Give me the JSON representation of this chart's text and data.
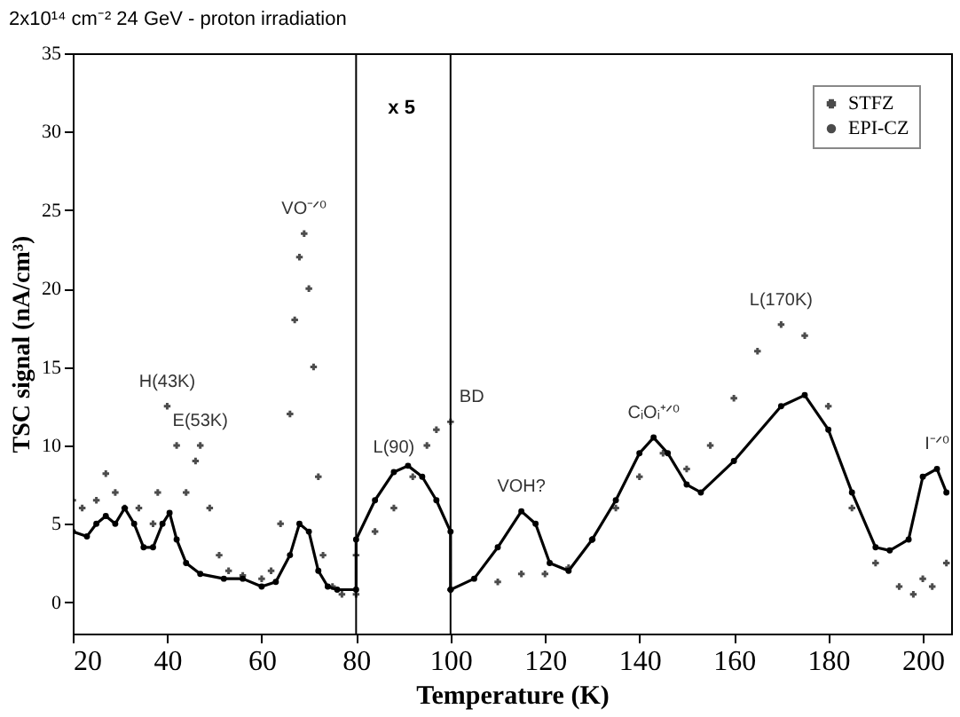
{
  "chart_data": {
    "type": "line",
    "title": "2x10¹⁴ cm⁻² 24 GeV - proton irradiation",
    "xlabel": "Temperature (K)",
    "ylabel": "TSC signal (nA/cm³)",
    "xlim": [
      20,
      206
    ],
    "xticks": [
      20,
      40,
      60,
      80,
      100,
      120,
      140,
      160,
      180,
      200
    ],
    "ylim": [
      -2,
      35
    ],
    "yticks": [
      0,
      5,
      10,
      15,
      20,
      25,
      30,
      35
    ],
    "grid": false,
    "legend": "top right",
    "series": [
      {
        "name": "STFZ",
        "type": "scatter",
        "marker": "cross",
        "color": "#000000",
        "x": [
          20,
          22,
          25,
          27,
          29,
          31,
          34,
          37,
          38,
          40,
          42,
          44,
          46,
          47,
          49,
          51,
          53,
          56,
          60,
          62,
          64,
          66,
          67,
          68,
          69,
          70,
          71,
          72,
          73,
          75,
          77,
          80,
          80,
          84,
          88,
          92,
          95,
          97,
          100,
          100,
          110,
          115,
          120,
          125,
          130,
          135,
          140,
          145,
          150,
          155,
          160,
          165,
          170,
          175,
          180,
          185,
          190,
          195,
          198,
          200,
          202,
          205
        ],
        "values": [
          6.5,
          6,
          6.5,
          8.2,
          7,
          6,
          6,
          5,
          7,
          12.5,
          10,
          7,
          9,
          10,
          6,
          3,
          2,
          1.7,
          1.5,
          2,
          5,
          12,
          18,
          22,
          23.5,
          20,
          15,
          8,
          3,
          1,
          0.5,
          0.5,
          3,
          4.5,
          6,
          8,
          10,
          11,
          11.5,
          0.8,
          1.3,
          1.8,
          1.8,
          2.2,
          4,
          6,
          8,
          9.5,
          8.5,
          10,
          13,
          16,
          17.7,
          17,
          12.5,
          6,
          2.5,
          1,
          0.5,
          1.5,
          1,
          2.5
        ]
      },
      {
        "name": "EPI-CZ",
        "marker": "circle",
        "color": "#000000",
        "x": [
          20,
          23,
          25,
          27,
          29,
          31,
          33,
          35,
          37,
          39,
          40.5,
          42,
          44,
          47,
          52,
          56,
          60,
          63,
          66,
          68,
          70,
          72,
          74,
          76,
          80,
          80,
          84,
          88,
          91,
          94,
          97,
          100,
          100,
          105,
          110,
          115,
          118,
          121,
          125,
          130,
          135,
          140,
          143,
          146,
          150,
          153,
          160,
          170,
          175,
          180,
          185,
          190,
          193,
          197,
          200,
          203,
          205
        ],
        "values": [
          4.5,
          4.2,
          5,
          5.5,
          5,
          6,
          5,
          3.5,
          3.5,
          5,
          5.7,
          4,
          2.5,
          1.8,
          1.5,
          1.5,
          1,
          1.3,
          3,
          5,
          4.5,
          2,
          1,
          0.8,
          0.8,
          4,
          6.5,
          8.3,
          8.7,
          8,
          6.5,
          4.5,
          0.8,
          1.5,
          3.5,
          5.8,
          5,
          2.5,
          2,
          4,
          6.5,
          9.5,
          10.5,
          9.5,
          7.5,
          7,
          9,
          12.5,
          13.2,
          11,
          7,
          3.5,
          3.3,
          4,
          8,
          8.5,
          7
        ]
      }
    ],
    "ref_lines": [
      {
        "axis": "x",
        "value": 80,
        "label": "x 5",
        "color": "#000000"
      },
      {
        "axis": "x",
        "value": 100,
        "color": "#000000"
      }
    ],
    "annotations": [
      {
        "text": "H(43K)",
        "x": 40,
        "y": 12.5
      },
      {
        "text": "E(53K)",
        "x": 47,
        "y": 10
      },
      {
        "text": "VO⁻ᐟ⁰",
        "x": 69,
        "y": 23.5
      },
      {
        "text": "L(90)",
        "x": 88,
        "y": 8.3
      },
      {
        "text": "BD",
        "x": 100,
        "y": 11.5
      },
      {
        "text": "VOH?",
        "x": 115,
        "y": 5.8
      },
      {
        "text": "CᵢOᵢ⁺ᐟ⁰",
        "x": 143,
        "y": 10.5
      },
      {
        "text": "L(170K)",
        "x": 170,
        "y": 17.7
      },
      {
        "text": "I⁻ᐟ⁰",
        "x": 203,
        "y": 8.5
      }
    ]
  }
}
